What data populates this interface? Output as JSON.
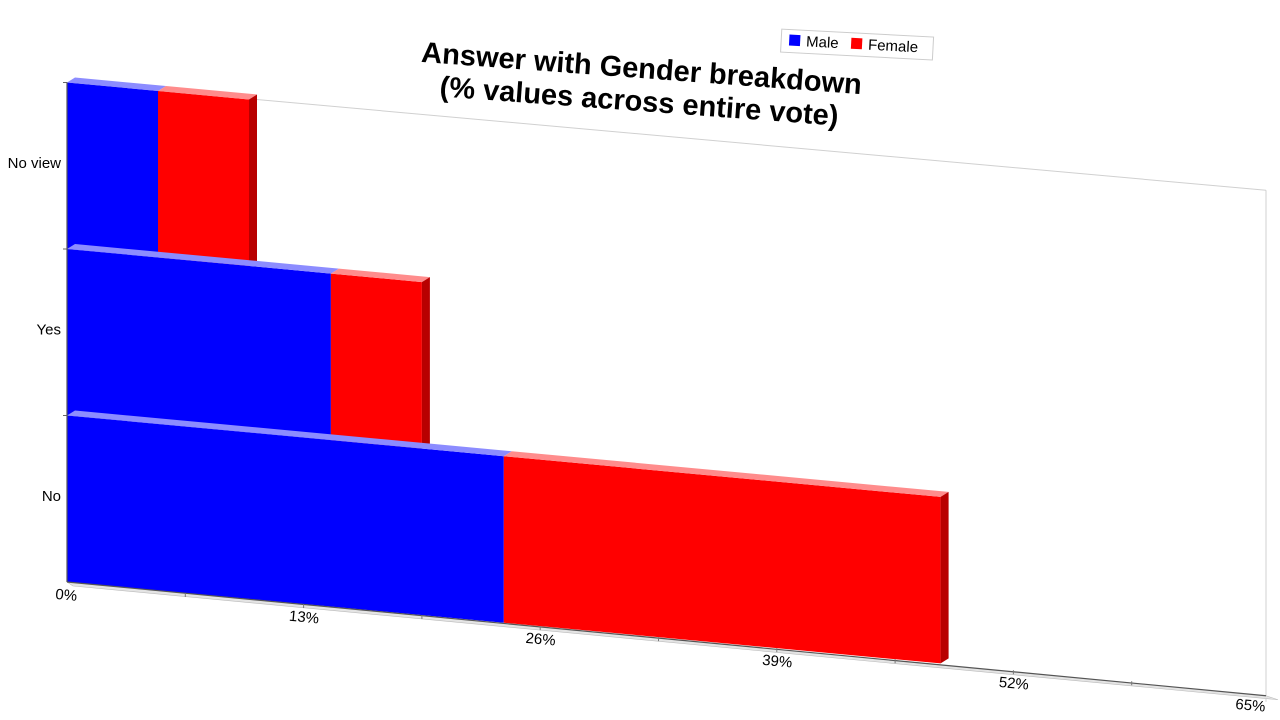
{
  "chart_data": {
    "type": "bar",
    "orientation": "horizontal",
    "stacked": true,
    "title": [
      "Answer with Gender breakdown",
      "(% values across entire vote)"
    ],
    "categories": [
      "No view",
      "Yes",
      "No"
    ],
    "series": [
      {
        "name": "Male",
        "color": "#0000ff",
        "values": [
          5,
          14.5,
          24
        ]
      },
      {
        "name": "Female",
        "color": "#ff0000",
        "values": [
          5,
          5,
          24
        ]
      }
    ],
    "x_ticks": [
      "0%",
      "13%",
      "26%",
      "39%",
      "52%",
      "65%"
    ],
    "xlim": [
      0,
      65
    ],
    "legend_position": "top-right",
    "grid": false,
    "perspective": "3d"
  }
}
